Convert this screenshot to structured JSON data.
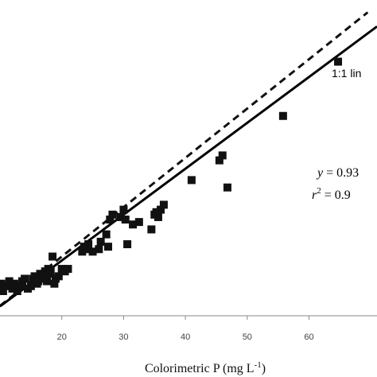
{
  "chart_data": {
    "type": "scatter",
    "title": "",
    "xlabel": "Colorimetric P (mg L",
    "xlabel_sup": "-1",
    "xlabel_close": ")",
    "ylabel": "",
    "xlim": [
      10,
      71
    ],
    "ylim": [
      8,
      72
    ],
    "x_ticks": [
      "20",
      "30",
      "40",
      "50",
      "60"
    ],
    "x_tick_values": [
      20,
      30,
      40,
      50,
      60
    ],
    "grid": false,
    "legend": "none",
    "series": [
      {
        "marker": "filled-square",
        "color": "#111111",
        "x": [
          10.2,
          10.5,
          11.0,
          11.5,
          12.0,
          12.3,
          12.8,
          13.2,
          13.6,
          14.0,
          14.5,
          15.0,
          15.3,
          15.6,
          16.0,
          16.2,
          16.5,
          16.8,
          17.0,
          17.3,
          17.6,
          17.8,
          18.0,
          18.2,
          18.5,
          18.8,
          19.0,
          19.5,
          20.0,
          20.5,
          21.0,
          23.3,
          23.6,
          24.0,
          24.3,
          25.0,
          26.0,
          26.3,
          27.2,
          27.5,
          27.8,
          28.2,
          29.5,
          30.0,
          30.3,
          30.6,
          31.5,
          32.5,
          34.5,
          35.0,
          35.3,
          35.6,
          36.0,
          36.5,
          41.0,
          45.5,
          46.0,
          46.8,
          55.8,
          64.7
        ],
        "y": [
          14.5,
          13.0,
          14.0,
          15.0,
          13.5,
          14.5,
          13.0,
          14.0,
          15.0,
          15.5,
          13.5,
          14.0,
          15.5,
          16.0,
          14.5,
          15.0,
          16.5,
          15.5,
          16.0,
          17.0,
          15.0,
          17.5,
          16.5,
          17.0,
          20.0,
          14.5,
          15.5,
          16.0,
          17.5,
          17.0,
          17.5,
          21.0,
          22.0,
          21.5,
          22.5,
          21.0,
          21.5,
          23.0,
          24.5,
          22.0,
          27.5,
          28.5,
          28.0,
          29.5,
          27.5,
          22.5,
          26.5,
          27.0,
          25.5,
          28.5,
          29.0,
          28.0,
          29.5,
          30.5,
          35.5,
          39.5,
          40.5,
          34.0,
          48.5,
          59.5
        ]
      }
    ],
    "regression_line": {
      "slope": 0.93,
      "intercept": 0.6
    },
    "one_to_one_line": {
      "slope": 1,
      "intercept": 0
    },
    "annotations": {
      "one_to_one_label": "1:1 lin",
      "eq_var": "y",
      "eq_rest": " = 0.93",
      "r2_var": "r",
      "r2_sup": "2",
      "r2_rest": " = 0.9"
    }
  }
}
